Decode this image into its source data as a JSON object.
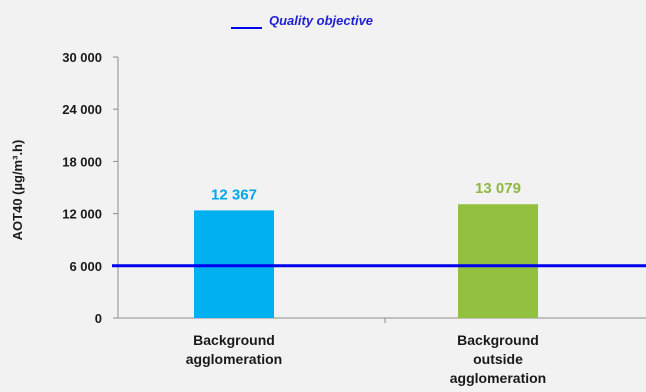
{
  "chart_data": {
    "type": "bar",
    "categories": [
      [
        "Background",
        "agglomeration"
      ],
      [
        "Background",
        "outside",
        "agglomeration"
      ]
    ],
    "values": [
      12367,
      13079
    ],
    "value_labels": [
      "12 367",
      "13 079"
    ],
    "bar_colors": [
      "#00b0f0",
      "#92c13f"
    ],
    "ylabel": "AOT40 (µg/m³.h)",
    "ylim": [
      0,
      30000
    ],
    "yticks": [
      0,
      6000,
      12000,
      18000,
      24000,
      30000
    ],
    "ytick_labels": [
      "0",
      "6 000",
      "12 000",
      "18 000",
      "24 000",
      "30 000"
    ],
    "reference_line": {
      "name": "Quality objective",
      "value": 6000,
      "color": "#0000ee"
    },
    "legend": {
      "position": "top-center",
      "entries": [
        "Quality objective"
      ]
    },
    "grid": false
  }
}
